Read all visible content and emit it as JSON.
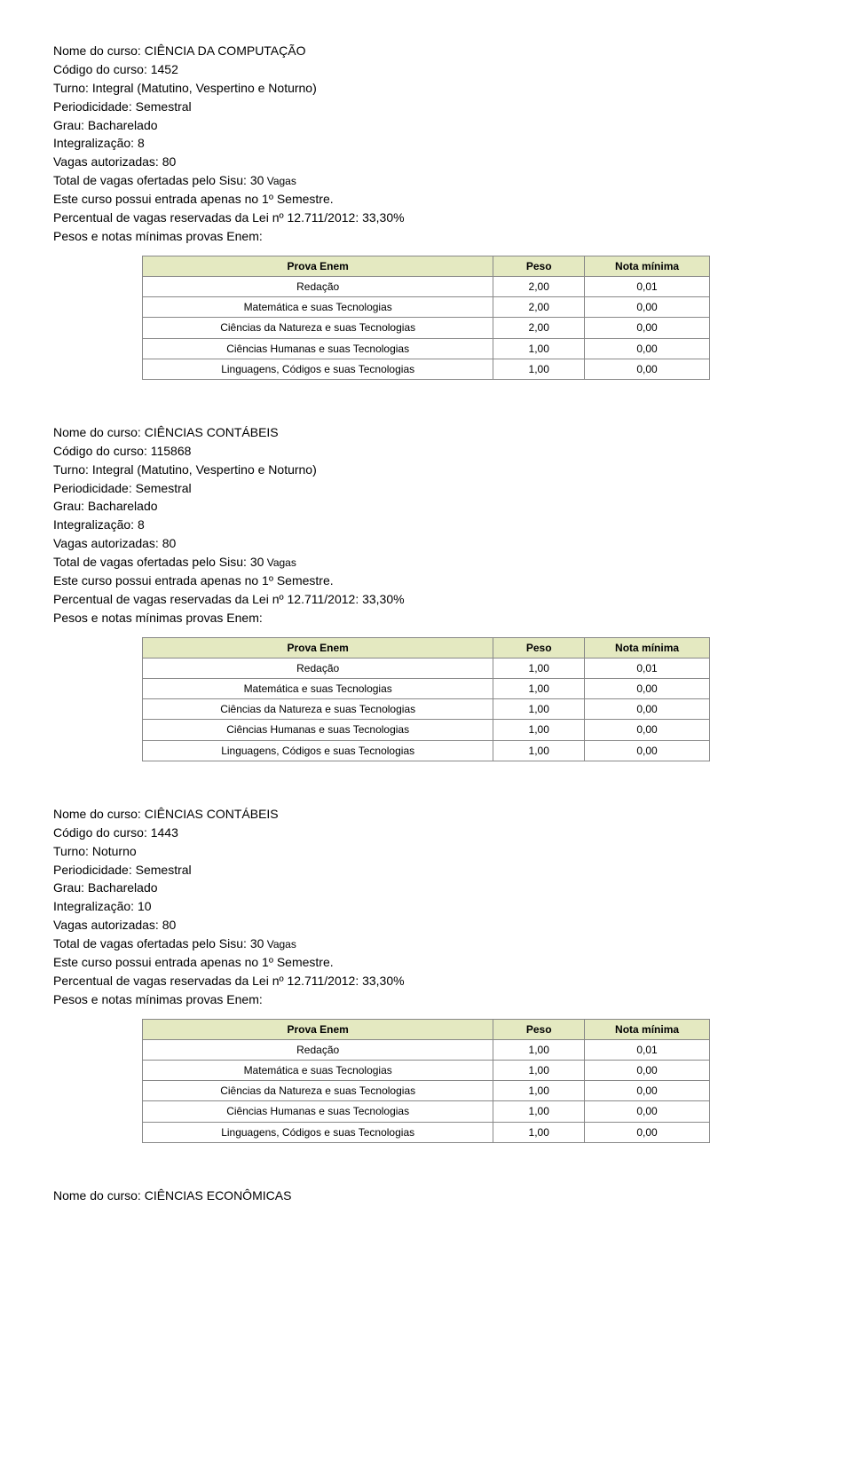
{
  "labels": {
    "nome_curso": "Nome do curso: ",
    "codigo": "Código do curso: ",
    "turno": "Turno: ",
    "periodicidade": "Periodicidade: ",
    "grau": "Grau: ",
    "integ": "Integralização: ",
    "vagas_aut": "Vagas autorizadas: ",
    "total_sisu_pre": "Total de vagas ofertadas pelo Sisu: ",
    "total_sisu_suffix": " Vagas",
    "entrada": "Este curso possui entrada apenas no 1º Semestre.",
    "percentual_pre": "Percentual de vagas reservadas da Lei nº 12.711/2012: ",
    "pesos_notas": "Pesos e notas mínimas provas Enem:"
  },
  "table_header": {
    "prova": "Prova Enem",
    "peso": "Peso",
    "nota": "Nota mínima",
    "bg_color": "#e4e9c1",
    "grid_color": "#888888",
    "cell_bg": "#ffffff",
    "font_size": 12
  },
  "row_labels": {
    "redacao": "Redação",
    "mat": "Matemática e suas Tecnologias",
    "nat": "Ciências da Natureza e suas Tecnologias",
    "hum": "Ciências Humanas e suas Tecnologias",
    "ling": "Linguagens, Códigos e suas Tecnologias"
  },
  "courses": [
    {
      "nome": "CIÊNCIA DA COMPUTAÇÃO",
      "codigo": "1452",
      "turno": "Integral (Matutino, Vespertino e Noturno)",
      "periodicidade": "Semestral",
      "grau": "Bacharelado",
      "integ": "8",
      "vagas_aut": "80",
      "sisu": "30",
      "percentual": "33,30%",
      "rows": {
        "redacao": {
          "peso": "2,00",
          "nota": "0,01"
        },
        "mat": {
          "peso": "2,00",
          "nota": "0,00"
        },
        "nat": {
          "peso": "2,00",
          "nota": "0,00"
        },
        "hum": {
          "peso": "1,00",
          "nota": "0,00"
        },
        "ling": {
          "peso": "1,00",
          "nota": "0,00"
        }
      }
    },
    {
      "nome": "CIÊNCIAS CONTÁBEIS",
      "codigo": "115868",
      "turno": "Integral (Matutino, Vespertino e Noturno)",
      "periodicidade": "Semestral",
      "grau": "Bacharelado",
      "integ": "8",
      "vagas_aut": "80",
      "sisu": "30",
      "percentual": "33,30%",
      "rows": {
        "redacao": {
          "peso": "1,00",
          "nota": "0,01"
        },
        "mat": {
          "peso": "1,00",
          "nota": "0,00"
        },
        "nat": {
          "peso": "1,00",
          "nota": "0,00"
        },
        "hum": {
          "peso": "1,00",
          "nota": "0,00"
        },
        "ling": {
          "peso": "1,00",
          "nota": "0,00"
        }
      }
    },
    {
      "nome": "CIÊNCIAS CONTÁBEIS",
      "codigo": "1443",
      "turno": "Noturno",
      "periodicidade": "Semestral",
      "grau": "Bacharelado",
      "integ": "10",
      "vagas_aut": "80",
      "sisu": "30",
      "percentual": "33,30%",
      "rows": {
        "redacao": {
          "peso": "1,00",
          "nota": "0,01"
        },
        "mat": {
          "peso": "1,00",
          "nota": "0,00"
        },
        "nat": {
          "peso": "1,00",
          "nota": "0,00"
        },
        "hum": {
          "peso": "1,00",
          "nota": "0,00"
        },
        "ling": {
          "peso": "1,00",
          "nota": "0,00"
        }
      }
    }
  ],
  "trailing": {
    "label": "Nome do curso: ",
    "value": "CIÊNCIAS ECONÔMICAS"
  }
}
